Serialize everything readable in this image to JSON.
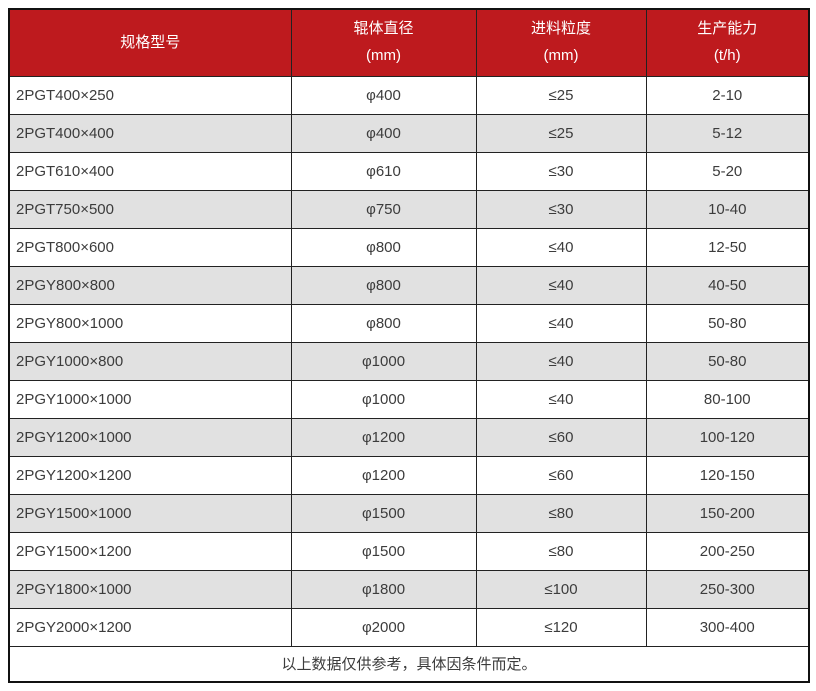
{
  "table": {
    "header": {
      "columns": [
        {
          "label": "规格型号",
          "unit": ""
        },
        {
          "label": "辊体直径",
          "unit": "(mm)"
        },
        {
          "label": "进料粒度",
          "unit": "(mm)"
        },
        {
          "label": "生产能力",
          "unit": "(t/h)"
        }
      ]
    },
    "rows": [
      {
        "model": "2PGT400×250",
        "diameter": "φ400",
        "feed_size": "≤25",
        "capacity": "2-10"
      },
      {
        "model": "2PGT400×400",
        "diameter": "φ400",
        "feed_size": "≤25",
        "capacity": "5-12"
      },
      {
        "model": "2PGT610×400",
        "diameter": "φ610",
        "feed_size": "≤30",
        "capacity": "5-20"
      },
      {
        "model": "2PGT750×500",
        "diameter": "φ750",
        "feed_size": "≤30",
        "capacity": "10-40"
      },
      {
        "model": "2PGT800×600",
        "diameter": "φ800",
        "feed_size": "≤40",
        "capacity": "12-50"
      },
      {
        "model": "2PGY800×800",
        "diameter": "φ800",
        "feed_size": "≤40",
        "capacity": "40-50"
      },
      {
        "model": "2PGY800×1000",
        "diameter": "φ800",
        "feed_size": "≤40",
        "capacity": "50-80"
      },
      {
        "model": "2PGY1000×800",
        "diameter": "φ1000",
        "feed_size": "≤40",
        "capacity": "50-80"
      },
      {
        "model": "2PGY1000×1000",
        "diameter": "φ1000",
        "feed_size": "≤40",
        "capacity": "80-100"
      },
      {
        "model": "2PGY1200×1000",
        "diameter": "φ1200",
        "feed_size": "≤60",
        "capacity": "100-120"
      },
      {
        "model": "2PGY1200×1200",
        "diameter": "φ1200",
        "feed_size": "≤60",
        "capacity": "120-150"
      },
      {
        "model": "2PGY1500×1000",
        "diameter": "φ1500",
        "feed_size": "≤80",
        "capacity": "150-200"
      },
      {
        "model": "2PGY1500×1200",
        "diameter": "φ1500",
        "feed_size": "≤80",
        "capacity": "200-250"
      },
      {
        "model": "2PGY1800×1000",
        "diameter": "φ1800",
        "feed_size": "≤100",
        "capacity": "250-300"
      },
      {
        "model": "2PGY2000×1200",
        "diameter": "φ2000",
        "feed_size": "≤120",
        "capacity": "300-400"
      }
    ],
    "footer_note": "以上数据仅供参考，具体因条件而定。"
  },
  "colors": {
    "header_bg": "#be1a1e",
    "header_text": "#ffffff",
    "row_bg": "#ffffff",
    "row_alt_bg": "#e1e1e1",
    "border": "#222222",
    "body_text": "#3c3c3c"
  }
}
